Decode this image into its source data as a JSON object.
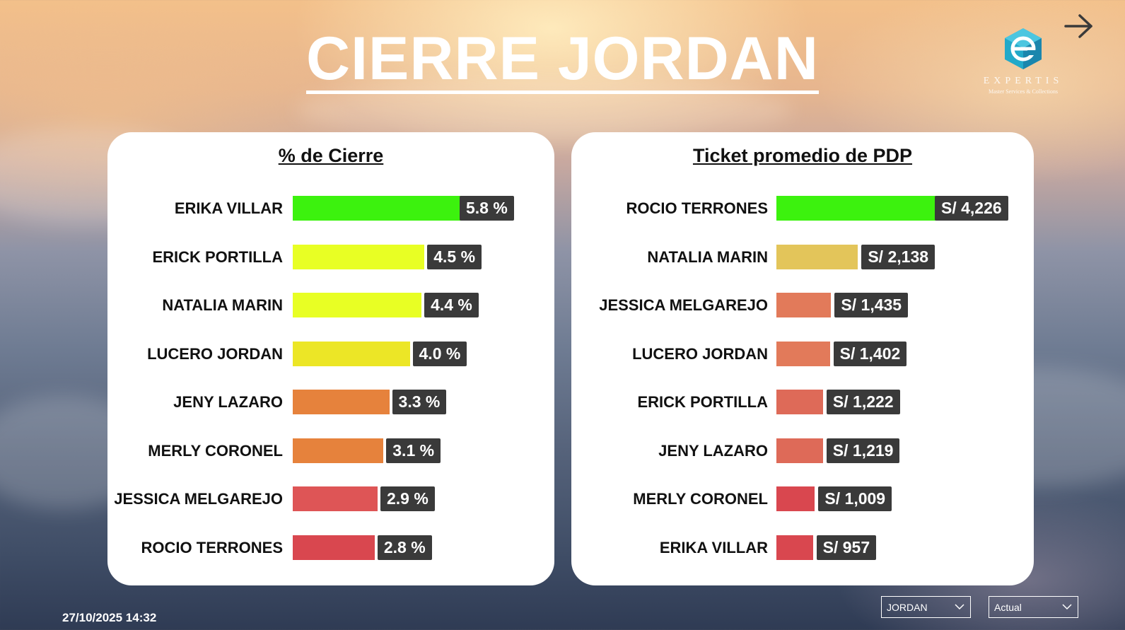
{
  "title": "CIERRE JORDAN",
  "logo": {
    "wordmark": "EXPERTIS",
    "tagline": "Master Services & Collections"
  },
  "timestamp": "27/10/2025 14:32",
  "filters": [
    {
      "selected": "JORDAN"
    },
    {
      "selected": "Actual"
    }
  ],
  "icons": {
    "next": "arrow-right-icon",
    "dropdown": "chevron-down-icon",
    "logo": "expertis-logo-icon"
  },
  "colors": {
    "green": "#3cf20e",
    "lime": "#e8ff24",
    "yellow": "#ece626",
    "gold": "#e3c55a",
    "orange": "#e6823c",
    "salmon": "#e27a5a",
    "coral": "#de6a58",
    "red": "#d9474f",
    "label_bg": "#3a3a3a"
  },
  "chart_data": [
    {
      "type": "bar",
      "orientation": "horizontal",
      "title": "% de Cierre",
      "categories": [
        "ERIKA VILLAR",
        "ERICK PORTILLA",
        "NATALIA MARIN",
        "LUCERO JORDAN",
        "JENY LAZARO",
        "MERLY CORONEL",
        "JESSICA MELGAREJO",
        "ROCIO TERRONES"
      ],
      "values": [
        5.8,
        4.5,
        4.4,
        4.0,
        3.3,
        3.1,
        2.9,
        2.8
      ],
      "labels": [
        "5.8 %",
        "4.5 %",
        "4.4 %",
        "4.0 %",
        "3.3 %",
        "3.1 %",
        "2.9 %",
        "2.8 %"
      ],
      "bar_colors": [
        "#3cf20e",
        "#e8ff24",
        "#e8ff24",
        "#ece626",
        "#e6823c",
        "#e6823c",
        "#de5556",
        "#d9474f"
      ]
    },
    {
      "type": "bar",
      "orientation": "horizontal",
      "title": "Ticket promedio de PDP",
      "categories": [
        "ROCIO TERRONES",
        "NATALIA MARIN",
        "JESSICA MELGAREJO",
        "LUCERO JORDAN",
        "ERICK PORTILLA",
        "JENY LAZARO",
        "MERLY CORONEL",
        "ERIKA VILLAR"
      ],
      "values": [
        4226,
        2138,
        1435,
        1402,
        1222,
        1219,
        1009,
        957
      ],
      "labels": [
        "S/ 4,226",
        "S/ 2,138",
        "S/ 1,435",
        "S/ 1,402",
        "S/ 1,222",
        "S/ 1,219",
        "S/ 1,009",
        "S/ 957"
      ],
      "bar_colors": [
        "#3cf20e",
        "#e3c55a",
        "#e27a5a",
        "#e27a5a",
        "#de6a58",
        "#de6a58",
        "#d9474f",
        "#d9474f"
      ]
    }
  ]
}
